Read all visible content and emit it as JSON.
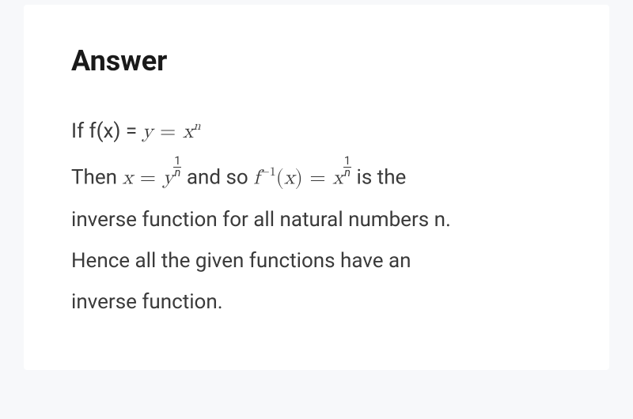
{
  "colors": {
    "page_bg": "#f7f8fa",
    "card_bg": "#ffffff",
    "heading_color": "#1a1a1a",
    "text_color": "#3a3a3a"
  },
  "typography": {
    "heading_fontsize": 36,
    "heading_weight": 700,
    "body_fontsize": 26,
    "line_height": 2.0
  },
  "heading": "Answer",
  "line1": {
    "prefix": "If f(x) = ",
    "math_y": "y",
    "eq": " = ",
    "math_x": "x",
    "exp_n": "n"
  },
  "line2": {
    "then": "Then ",
    "x": "x",
    "eq1": " = ",
    "y": "y",
    "frac1_num": "1",
    "frac1_den": "n",
    "andso": " and so ",
    "f": "f",
    "neg1": "−1",
    "lp": "(",
    "x2": "x",
    "rp": ")",
    "eq2": " = ",
    "x3": "x",
    "frac2_num": "1",
    "frac2_den": "n",
    "isthe": " is the"
  },
  "line3": "inverse function for all natural numbers n.",
  "line4": "Hence all the given functions have an",
  "line5": "inverse function."
}
